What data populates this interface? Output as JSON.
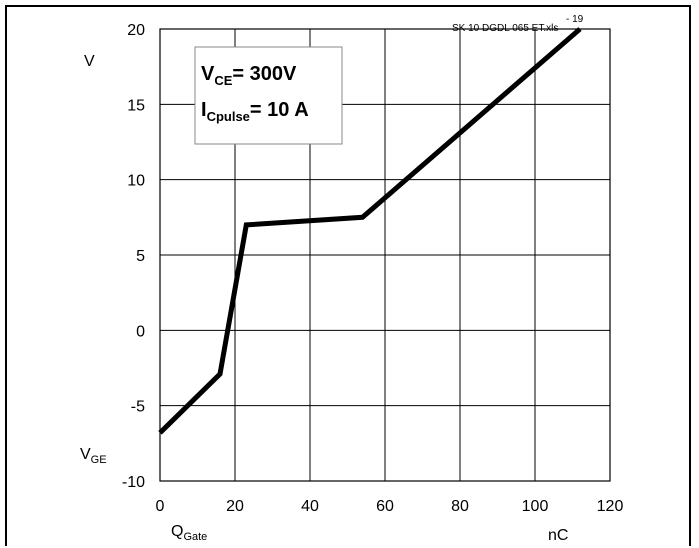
{
  "chart_data": {
    "type": "line",
    "series": [
      {
        "x": [
          0,
          16,
          23,
          54,
          112
        ],
        "y": [
          -6.8,
          -2.9,
          7.0,
          7.5,
          20.0
        ],
        "color": "#000000"
      }
    ],
    "xlim": [
      0,
      120
    ],
    "ylim": [
      -10,
      20
    ],
    "x_ticks": [
      0,
      20,
      40,
      60,
      80,
      100,
      120
    ],
    "y_ticks": [
      -10,
      -5,
      0,
      5,
      10,
      15,
      20
    ],
    "x_tick_labels": [
      "0",
      "20",
      "40",
      "60",
      "80",
      "100",
      "120"
    ],
    "y_tick_labels": [
      "-10",
      "-5",
      "0",
      "5",
      "10",
      "15",
      "20"
    ],
    "grid": true,
    "xlabel": {
      "main": "Q",
      "sub": "Gate"
    },
    "xunit": "nC",
    "ylabel": {
      "main": "V",
      "sub": "GE"
    },
    "yunit": "V",
    "reference": {
      "text": "SK 10 DGDL 065 ET.xls",
      "suffix": "- 19"
    },
    "annotation": {
      "line1": {
        "main": "V",
        "sub": "CE",
        "value": "= 300V"
      },
      "line2": {
        "main": "I",
        "sub": "Cpulse",
        "value": "= 10 A"
      }
    }
  }
}
